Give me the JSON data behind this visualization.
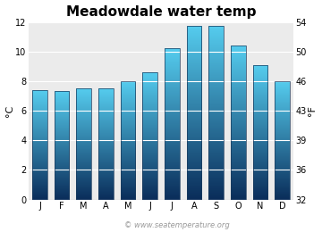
{
  "title": "Meadowdale water temp",
  "months": [
    "J",
    "F",
    "M",
    "A",
    "M",
    "J",
    "J",
    "A",
    "S",
    "O",
    "N",
    "D"
  ],
  "values_c": [
    7.4,
    7.3,
    7.5,
    7.5,
    8.0,
    8.6,
    10.2,
    11.7,
    11.7,
    10.4,
    9.1,
    8.0
  ],
  "ylim_c": [
    0,
    12
  ],
  "yticks_c": [
    0,
    2,
    4,
    6,
    8,
    10,
    12
  ],
  "yticks_f": [
    32,
    36,
    39,
    43,
    46,
    50,
    54
  ],
  "ylabel_left": "°C",
  "ylabel_right": "°F",
  "bar_color_top": "#55ccee",
  "bar_color_bottom": "#0a2d5a",
  "bar_border_color": "#1a3a5c",
  "bg_color": "#ebebeb",
  "fig_bg_color": "#ffffff",
  "title_fontsize": 11,
  "tick_fontsize": 7,
  "watermark": "© www.seatemperature.org",
  "watermark_color": "#999999",
  "watermark_fontsize": 6
}
